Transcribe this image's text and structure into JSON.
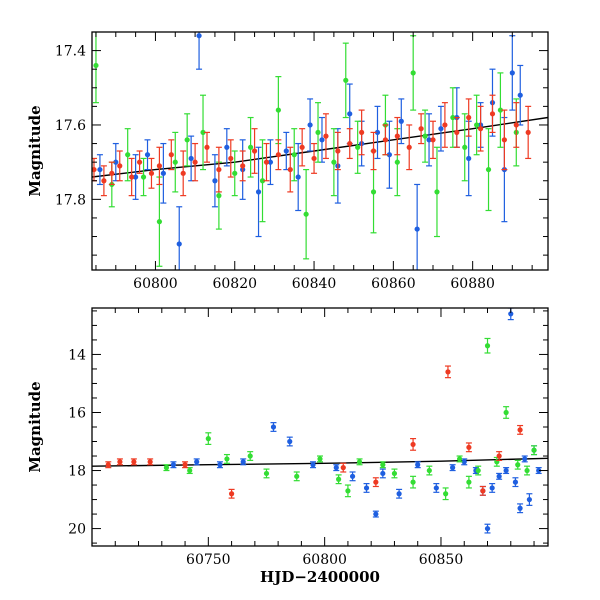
{
  "chart_data": [
    {
      "type": "scatter",
      "panel": "top",
      "title": "",
      "xlabel": "",
      "ylabel": "Magnitude",
      "xlim": [
        60784,
        60899
      ],
      "ylim": [
        17.35,
        17.99
      ],
      "y_inverted": true,
      "x_ticks": [
        60800,
        60820,
        60840,
        60860,
        60880
      ],
      "y_ticks": [
        17.4,
        17.6,
        17.8
      ],
      "error_bars": true,
      "grid": false,
      "legend": "none",
      "series": [
        {
          "color": "#1f5fe0",
          "x": [
            60786,
            60790,
            60795,
            60798,
            60802,
            60806,
            60809,
            60811,
            60815,
            60818,
            60822,
            60826,
            60829,
            60833,
            60836,
            60839,
            60842,
            60846,
            60849,
            60852,
            60856,
            60859,
            60862,
            60866,
            60869,
            60872,
            60876,
            60879,
            60882,
            60885,
            60888,
            60890,
            60892
          ],
          "y": [
            17.72,
            17.7,
            17.74,
            17.68,
            17.73,
            17.92,
            17.69,
            17.36,
            17.75,
            17.66,
            17.72,
            17.78,
            17.7,
            17.67,
            17.74,
            17.6,
            17.64,
            17.71,
            17.57,
            17.65,
            17.62,
            17.68,
            17.59,
            17.88,
            17.64,
            17.61,
            17.58,
            17.69,
            17.6,
            17.54,
            17.72,
            17.46,
            17.52
          ],
          "yerr": [
            0.04,
            0.05,
            0.06,
            0.04,
            0.08,
            0.1,
            0.06,
            0.09,
            0.07,
            0.05,
            0.08,
            0.12,
            0.06,
            0.05,
            0.09,
            0.07,
            0.06,
            0.1,
            0.08,
            0.06,
            0.07,
            0.09,
            0.06,
            0.12,
            0.07,
            0.06,
            0.08,
            0.1,
            0.06,
            0.09,
            0.14,
            0.1,
            0.08
          ]
        },
        {
          "color": "#33dd33",
          "x": [
            60785,
            60789,
            60793,
            60797,
            60801,
            60805,
            60808,
            60812,
            60816,
            60820,
            60824,
            60827,
            60831,
            60835,
            60838,
            60841,
            60845,
            60848,
            60851,
            60855,
            60858,
            60861,
            60865,
            60868,
            60871,
            60875,
            60878,
            60881,
            60884,
            60887,
            60891
          ],
          "y": [
            17.44,
            17.76,
            17.68,
            17.74,
            17.86,
            17.7,
            17.64,
            17.62,
            17.79,
            17.73,
            17.66,
            17.75,
            17.56,
            17.68,
            17.84,
            17.62,
            17.7,
            17.48,
            17.66,
            17.78,
            17.6,
            17.7,
            17.46,
            17.63,
            17.78,
            17.58,
            17.66,
            17.6,
            17.72,
            17.56,
            17.62
          ],
          "yerr": [
            0.1,
            0.06,
            0.07,
            0.05,
            0.12,
            0.08,
            0.07,
            0.1,
            0.09,
            0.06,
            0.08,
            0.11,
            0.09,
            0.07,
            0.12,
            0.08,
            0.09,
            0.1,
            0.07,
            0.11,
            0.08,
            0.09,
            0.1,
            0.07,
            0.12,
            0.08,
            0.09,
            0.08,
            0.11,
            0.1,
            0.09
          ]
        },
        {
          "color": "#ee3a22",
          "x": [
            60784.5,
            60787,
            60789,
            60791,
            60794,
            60796,
            60799,
            60801,
            60804,
            60807,
            60810,
            60813,
            60816,
            60819,
            60822,
            60825,
            60828,
            60831,
            60834,
            60837,
            60840,
            60843,
            60846,
            60849,
            60852,
            60855,
            60858,
            60861,
            60864,
            60867,
            60870,
            60873,
            60876,
            60879,
            60882,
            60885,
            60888,
            60891,
            60894
          ],
          "y": [
            17.72,
            17.75,
            17.73,
            17.71,
            17.74,
            17.7,
            17.73,
            17.71,
            17.68,
            17.73,
            17.7,
            17.66,
            17.72,
            17.69,
            17.71,
            17.67,
            17.7,
            17.68,
            17.72,
            17.66,
            17.69,
            17.63,
            17.67,
            17.65,
            17.62,
            17.67,
            17.64,
            17.63,
            17.66,
            17.61,
            17.64,
            17.6,
            17.62,
            17.58,
            17.61,
            17.57,
            17.64,
            17.6,
            17.62
          ],
          "yerr": [
            0.03,
            0.04,
            0.03,
            0.04,
            0.05,
            0.03,
            0.04,
            0.05,
            0.04,
            0.06,
            0.05,
            0.04,
            0.06,
            0.05,
            0.04,
            0.06,
            0.05,
            0.04,
            0.06,
            0.05,
            0.04,
            0.06,
            0.05,
            0.04,
            0.06,
            0.05,
            0.04,
            0.05,
            0.06,
            0.04,
            0.05,
            0.06,
            0.04,
            0.05,
            0.06,
            0.05,
            0.08,
            0.06,
            0.07
          ]
        }
      ],
      "trend_line": {
        "color": "#000000",
        "x": [
          60784,
          60800,
          60820,
          60840,
          60860,
          60880,
          60899
        ],
        "y": [
          17.74,
          17.72,
          17.7,
          17.67,
          17.64,
          17.61,
          17.58
        ]
      }
    },
    {
      "type": "scatter",
      "panel": "bottom",
      "title": "",
      "xlabel": "HJD−2400000",
      "ylabel": "Magnitude",
      "xlim": [
        60700,
        60896
      ],
      "ylim": [
        12.4,
        20.6
      ],
      "y_inverted": true,
      "x_ticks": [
        60750,
        60800,
        60850
      ],
      "y_ticks": [
        14,
        16,
        18,
        20
      ],
      "error_bars": true,
      "grid": false,
      "legend": "none",
      "series": [
        {
          "color": "#1f5fe0",
          "x": [
            60735,
            60745,
            60755,
            60765,
            60778,
            60785,
            60795,
            60805,
            60812,
            60818,
            60822,
            60825,
            60832,
            60840,
            60848,
            60855,
            60860,
            60865,
            60868,
            60870,
            60872,
            60875,
            60878,
            60880,
            60882,
            60884,
            60886,
            60888,
            60890,
            60892
          ],
          "y": [
            17.8,
            17.7,
            17.8,
            17.7,
            16.5,
            17.0,
            17.8,
            17.9,
            18.2,
            18.6,
            19.5,
            18.1,
            18.8,
            17.8,
            18.6,
            17.9,
            17.7,
            18.0,
            18.7,
            20.0,
            18.6,
            18.2,
            18.0,
            12.6,
            18.4,
            19.3,
            17.6,
            19.0,
            17.3,
            18.0
          ],
          "yerr": [
            0.1,
            0.1,
            0.1,
            0.1,
            0.15,
            0.15,
            0.1,
            0.1,
            0.15,
            0.15,
            0.1,
            0.15,
            0.15,
            0.1,
            0.15,
            0.1,
            0.1,
            0.1,
            0.15,
            0.15,
            0.15,
            0.1,
            0.1,
            0.2,
            0.15,
            0.15,
            0.1,
            0.2,
            0.15,
            0.1
          ]
        },
        {
          "color": "#33dd33",
          "x": [
            60732,
            60742,
            60750,
            60758,
            60768,
            60775,
            60788,
            60798,
            60806,
            60810,
            60815,
            60825,
            60830,
            60838,
            60845,
            60852,
            60858,
            60862,
            60866,
            60870,
            60874,
            60878,
            60883,
            60887,
            60890
          ],
          "y": [
            17.9,
            18.0,
            16.9,
            17.6,
            17.5,
            18.1,
            18.2,
            17.6,
            18.3,
            18.7,
            17.7,
            17.8,
            18.1,
            18.4,
            18.0,
            18.8,
            17.6,
            18.4,
            18.0,
            13.7,
            17.7,
            16.0,
            17.8,
            18.0,
            17.3
          ],
          "yerr": [
            0.1,
            0.1,
            0.2,
            0.15,
            0.15,
            0.15,
            0.15,
            0.1,
            0.15,
            0.2,
            0.1,
            0.1,
            0.15,
            0.2,
            0.15,
            0.2,
            0.1,
            0.2,
            0.15,
            0.25,
            0.15,
            0.2,
            0.15,
            0.15,
            0.15
          ]
        },
        {
          "color": "#ee3a22",
          "x": [
            60707,
            60712,
            60718,
            60725,
            60740,
            60760,
            60808,
            60822,
            60838,
            60853,
            60862,
            60868,
            60875,
            60884
          ],
          "y": [
            17.8,
            17.7,
            17.7,
            17.7,
            17.8,
            18.8,
            17.9,
            18.4,
            17.1,
            14.6,
            17.2,
            18.7,
            17.5,
            16.6
          ],
          "yerr": [
            0.1,
            0.1,
            0.1,
            0.1,
            0.1,
            0.15,
            0.15,
            0.15,
            0.2,
            0.2,
            0.15,
            0.15,
            0.15,
            0.15
          ]
        }
      ],
      "trend_line": {
        "color": "#000000",
        "x": [
          60700,
          60750,
          60800,
          60850,
          60896
        ],
        "y": [
          17.85,
          17.8,
          17.75,
          17.68,
          17.58
        ]
      }
    }
  ]
}
